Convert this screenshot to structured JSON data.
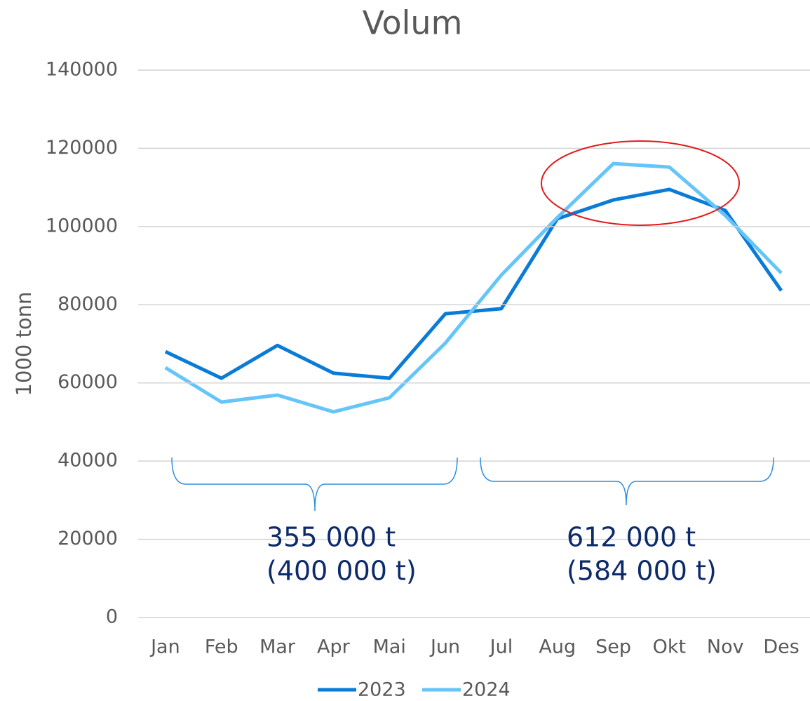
{
  "chart_data": {
    "type": "line",
    "title": "Volum",
    "y_label": "1000 tonn",
    "categories": [
      "Jan",
      "Feb",
      "Mar",
      "Apr",
      "Mai",
      "Jun",
      "Jul",
      "Aug",
      "Sep",
      "Okt",
      "Nov",
      "Des"
    ],
    "series": [
      {
        "name": "2023",
        "color": "#0a7bd6",
        "values": [
          68000,
          61200,
          69600,
          62500,
          61200,
          77700,
          79000,
          102000,
          106800,
          109500,
          104100,
          83600
        ]
      },
      {
        "name": "2024",
        "color": "#66c5f8",
        "values": [
          63900,
          55100,
          56900,
          52600,
          56200,
          70200,
          87600,
          102300,
          116100,
          115200,
          102800,
          88100
        ]
      }
    ],
    "ylim": [
      0,
      140000
    ],
    "yticks": [
      0,
      20000,
      40000,
      60000,
      80000,
      100000,
      120000,
      140000
    ],
    "grid": true,
    "annotations": [
      "355 000 t",
      "(400 000 t)",
      "612 000 t",
      "(584 000 t)"
    ]
  }
}
